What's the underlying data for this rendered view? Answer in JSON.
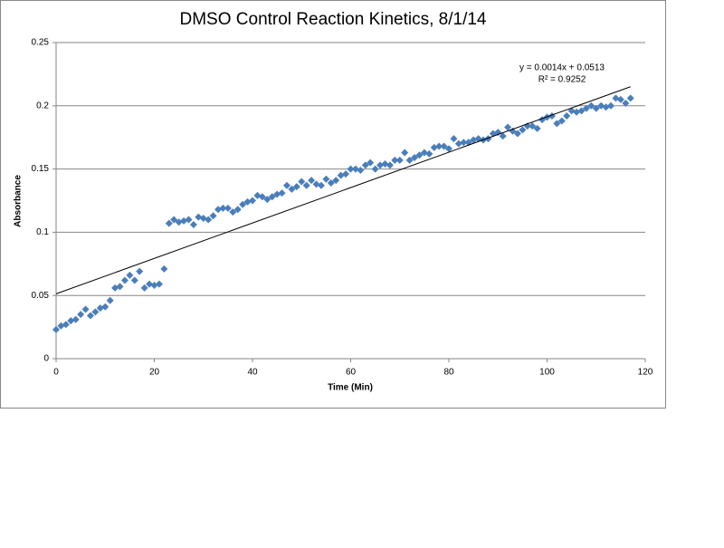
{
  "chart_data": {
    "type": "scatter",
    "title": "DMSO Control Reaction Kinetics, 8/1/14",
    "x_label": "Time (Min)",
    "y_label": "Absorbance",
    "x": [
      0,
      1,
      2,
      3,
      4,
      5,
      6,
      7,
      8,
      9,
      10,
      11,
      12,
      13,
      14,
      15,
      16,
      17,
      18,
      19,
      20,
      21,
      22,
      23,
      24,
      25,
      26,
      27,
      28,
      29,
      30,
      31,
      32,
      33,
      34,
      35,
      36,
      37,
      38,
      39,
      40,
      41,
      42,
      43,
      44,
      45,
      46,
      47,
      48,
      49,
      50,
      51,
      52,
      53,
      54,
      55,
      56,
      57,
      58,
      59,
      60,
      61,
      62,
      63,
      64,
      65,
      66,
      67,
      68,
      69,
      70,
      71,
      72,
      73,
      74,
      75,
      76,
      77,
      78,
      79,
      80,
      81,
      82,
      83,
      84,
      85,
      86,
      87,
      88,
      89,
      90,
      91,
      92,
      93,
      94,
      95,
      96,
      97,
      98,
      99,
      100,
      101,
      102,
      103,
      104,
      105,
      106,
      107,
      108,
      109,
      110,
      111,
      112,
      113,
      114,
      115,
      116,
      117
    ],
    "series": [
      {
        "color": "#4a7ebb",
        "values": [
          0.023,
          0.026,
          0.027,
          0.03,
          0.031,
          0.035,
          0.039,
          0.034,
          0.037,
          0.04,
          0.041,
          0.046,
          0.056,
          0.057,
          0.062,
          0.066,
          0.062,
          0.069,
          0.056,
          0.059,
          0.058,
          0.059,
          0.071,
          0.107,
          0.11,
          0.108,
          0.109,
          0.11,
          0.106,
          0.112,
          0.111,
          0.11,
          0.113,
          0.118,
          0.119,
          0.119,
          0.116,
          0.118,
          0.122,
          0.124,
          0.125,
          0.129,
          0.128,
          0.126,
          0.128,
          0.13,
          0.131,
          0.137,
          0.134,
          0.136,
          0.14,
          0.137,
          0.141,
          0.138,
          0.137,
          0.142,
          0.139,
          0.141,
          0.145,
          0.146,
          0.15,
          0.15,
          0.149,
          0.153,
          0.155,
          0.15,
          0.153,
          0.154,
          0.153,
          0.157,
          0.157,
          0.163,
          0.157,
          0.159,
          0.161,
          0.163,
          0.162,
          0.167,
          0.168,
          0.168,
          0.166,
          0.174,
          0.17,
          0.171,
          0.171,
          0.173,
          0.174,
          0.173,
          0.174,
          0.178,
          0.179,
          0.176,
          0.183,
          0.18,
          0.178,
          0.181,
          0.184,
          0.184,
          0.182,
          0.189,
          0.191,
          0.192,
          0.186,
          0.188,
          0.192,
          0.196,
          0.195,
          0.196,
          0.198,
          0.2,
          0.198,
          0.2,
          0.199,
          0.2,
          0.206,
          0.205,
          0.202,
          0.206
        ]
      }
    ],
    "trendline": {
      "slope": 0.0014,
      "intercept": 0.0513,
      "equation": "y = 0.0014x + 0.0513",
      "r2_label": "R² = 0.9252",
      "color": "#000000"
    },
    "xlim": [
      0,
      120
    ],
    "xticks": [
      0,
      20,
      40,
      60,
      80,
      100,
      120
    ],
    "ylim": [
      0,
      0.25
    ],
    "yticks": [
      0,
      0.05,
      0.1,
      0.15,
      0.2,
      0.25
    ],
    "grid": true
  }
}
